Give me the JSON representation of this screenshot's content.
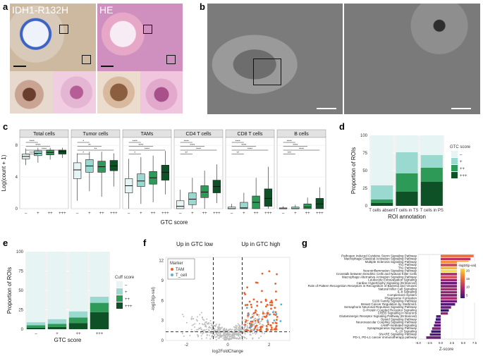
{
  "panels": {
    "a": "a",
    "b": "b",
    "c": "c",
    "d": "d",
    "e": "e",
    "f": "f",
    "g": "g"
  },
  "panel_a": {
    "label_left": "IDH1-R132H",
    "label_right": "HE"
  },
  "colors": {
    "gtc_minus": "#e6f4f4",
    "gtc_plus": "#9ad9cf",
    "gtc_pp": "#2e9a57",
    "gtc_ppp": "#0e5127",
    "tam": "#e8632c",
    "tcell": "#5aaed8",
    "grey": "#bdbdbd"
  },
  "chart_data": [
    {
      "id": "c",
      "type": "box",
      "xlabel": "GTC score",
      "ylabel": "Log(count + 1)",
      "ylim": [
        0,
        9
      ],
      "yticks": [
        0,
        4,
        8
      ],
      "categories": [
        "–",
        "+",
        "++",
        "+++"
      ],
      "facets": [
        {
          "name": "Total cells",
          "medians": [
            6.6,
            7.0,
            7.1,
            7.2
          ],
          "q1": [
            6.3,
            6.7,
            6.8,
            6.9
          ],
          "q3": [
            6.9,
            7.3,
            7.4,
            7.4
          ],
          "lo": [
            5.5,
            5.8,
            6.2,
            6.4
          ],
          "hi": [
            7.6,
            7.7,
            7.7,
            7.7
          ],
          "sig": [
            "****",
            "****",
            "****",
            "****"
          ]
        },
        {
          "name": "Tumor cells",
          "medians": [
            4.9,
            5.4,
            5.3,
            5.4
          ],
          "q1": [
            3.8,
            4.6,
            4.6,
            4.8
          ],
          "q3": [
            5.8,
            6.2,
            6.0,
            6.1
          ],
          "lo": [
            1.0,
            2.2,
            1.5,
            2.8
          ],
          "hi": [
            7.0,
            7.2,
            7.2,
            7.0
          ],
          "sig": [
            "*",
            "**",
            "**",
            "*"
          ]
        },
        {
          "name": "TAMs",
          "medians": [
            2.9,
            3.5,
            3.9,
            4.6
          ],
          "q1": [
            2.0,
            2.8,
            3.1,
            3.6
          ],
          "q3": [
            3.8,
            4.4,
            4.7,
            5.5
          ],
          "lo": [
            0.0,
            0.6,
            0.8,
            1.8
          ],
          "hi": [
            6.3,
            6.5,
            6.7,
            7.3
          ],
          "sig": [
            "****",
            "****",
            "****",
            "*"
          ]
        },
        {
          "name": "CD4 T cells",
          "medians": [
            0.3,
            1.2,
            2.1,
            2.8
          ],
          "q1": [
            0.0,
            0.5,
            1.4,
            2.0
          ],
          "q3": [
            1.0,
            2.0,
            2.9,
            3.6
          ],
          "lo": [
            0.0,
            0.0,
            0.0,
            0.7
          ],
          "hi": [
            2.4,
            3.9,
            4.8,
            5.6
          ],
          "sig": [
            "****",
            "****",
            "****",
            "**"
          ]
        },
        {
          "name": "CD8 T cells",
          "medians": [
            0.0,
            0.1,
            0.8,
            1.3
          ],
          "q1": [
            0.0,
            0.0,
            0.0,
            0.3
          ],
          "q3": [
            0.2,
            0.8,
            1.6,
            2.5
          ],
          "lo": [
            0.0,
            0.0,
            0.0,
            0.0
          ],
          "hi": [
            0.6,
            2.0,
            3.9,
            5.3
          ],
          "sig": [
            "****",
            "****",
            "****",
            "**"
          ]
        },
        {
          "name": "B cells",
          "medians": [
            0.0,
            0.0,
            0.2,
            0.6
          ],
          "q1": [
            0.0,
            0.0,
            0.0,
            0.0
          ],
          "q3": [
            0.1,
            0.2,
            0.6,
            1.3
          ],
          "lo": [
            0.0,
            0.0,
            0.0,
            0.0
          ],
          "hi": [
            0.3,
            0.5,
            1.4,
            2.7
          ],
          "sig": [
            "****",
            "****",
            "****",
            "***"
          ]
        }
      ]
    },
    {
      "id": "d",
      "type": "bar",
      "stacked": true,
      "xlabel": "ROI annotation",
      "ylabel": "Proportion of ROIs",
      "ylim": [
        0,
        100
      ],
      "yticks": [
        0,
        25,
        50,
        75,
        100
      ],
      "categories": [
        "T cells absent",
        "T cells in TS",
        "T cells in PS"
      ],
      "legend_title": "GTC score",
      "series": [
        {
          "name": "+++",
          "values": [
            4,
            20,
            34
          ]
        },
        {
          "name": "++",
          "values": [
            5,
            26,
            20
          ]
        },
        {
          "name": "+",
          "values": [
            20,
            30,
            18
          ]
        },
        {
          "name": "–",
          "values": [
            71,
            24,
            28
          ]
        }
      ]
    },
    {
      "id": "e",
      "type": "bar",
      "stacked": true,
      "xlabel": "GTC score",
      "ylabel": "Proportion of ROIs",
      "ylim": [
        0,
        100
      ],
      "yticks": [
        0,
        25,
        50,
        75,
        100
      ],
      "categories": [
        "–",
        "+",
        "++",
        "+++"
      ],
      "legend_title": "Cuff score",
      "series": [
        {
          "name": "+++",
          "values": [
            2,
            3,
            8,
            22
          ]
        },
        {
          "name": "++",
          "values": [
            3,
            4,
            7,
            12
          ]
        },
        {
          "name": "+",
          "values": [
            4,
            6,
            8,
            8
          ]
        },
        {
          "name": "–",
          "values": [
            91,
            87,
            77,
            58
          ]
        }
      ]
    },
    {
      "id": "f",
      "type": "scatter",
      "xlabel": "log2FoldChange",
      "ylabel": "-log10(p-val)",
      "xlim": [
        -3,
        3
      ],
      "ylim": [
        0,
        12.5
      ],
      "xticks": [
        -2,
        0,
        2
      ],
      "yticks": [
        0,
        3,
        6,
        9,
        12
      ],
      "title_left": "Up in GTC low",
      "title_right": "Up in GTC high",
      "legend_title": "Marker",
      "legend": [
        "TAM",
        "T_cell"
      ],
      "thresholds": {
        "x": [
          -0.7,
          0.7
        ],
        "y": 1.3
      }
    },
    {
      "id": "g",
      "type": "bar",
      "orientation": "horizontal",
      "xlabel": "Z-score",
      "xlim": [
        -5,
        7.5
      ],
      "xticks": [
        -5.0,
        -2.5,
        0.0,
        2.5,
        5.0,
        7.5
      ],
      "legend_title": "-log10(p-val)",
      "legend_ticks": [
        5,
        10,
        15,
        20
      ],
      "categories": [
        "Pathogen Induced Cytokine Storm Signaling Pathway",
        "Macrophage Classical Activation Signaling Pathway",
        "Multiple Sclerosis Signaling Pathway",
        "Th1 Pathway",
        "Th2 Pathway",
        "Neuroinflammation Signaling Pathway",
        "Crosstalk between Dendritic Cells and Natural Killer Cells",
        "Macrophage Alternative Activation Signaling Pathway",
        "Leukocyte Extravasation Signaling",
        "Cardiac Hypertrophy Signaling (Enhanced)",
        "Role of Pattern Recognition Receptors in Recognition of Bacteria and Viruses",
        "Natural Killer Cell Signaling",
        "IL-8 Signaling",
        "Complement System",
        "Phagosome Formation",
        "S100 Family Signaling Pathway",
        "Breast Cancer Regulation by Stathmin1",
        "Semaphorin Neuronal Repulsive Signaling Pathway",
        "G-Protein Coupled Receptor Signaling",
        "CREB Signaling in Neurons",
        "Glutaminergic Receptor Signaling Pathway (Enhanced)",
        "Opioid Signaling Pathway",
        "Neurovascular Coupling Signaling Pathway",
        "cAMP-mediated signaling",
        "Synaptogenesis Signaling Pathway",
        "IL-10 Signaling",
        "SNARE Signaling Pathway",
        "PD-1, PD-L1 cancer immunotherapy pathway"
      ],
      "values": [
        7.3,
        6.6,
        6.2,
        6.0,
        5.8,
        5.7,
        5.2,
        5.0,
        4.6,
        4.5,
        4.4,
        4.3,
        4.2,
        4.1,
        3.9,
        3.8,
        3.2,
        2.3,
        1.8,
        1.6,
        -1.0,
        -1.1,
        -1.3,
        -1.5,
        -1.9,
        -2.1,
        -2.4,
        -3.2
      ],
      "pvals": [
        14,
        10,
        16,
        11,
        18,
        20,
        9,
        12,
        8,
        6,
        7,
        9,
        8,
        7,
        9,
        6,
        5,
        6,
        4,
        8,
        5,
        4,
        6,
        5,
        7,
        4,
        5,
        6
      ]
    }
  ]
}
